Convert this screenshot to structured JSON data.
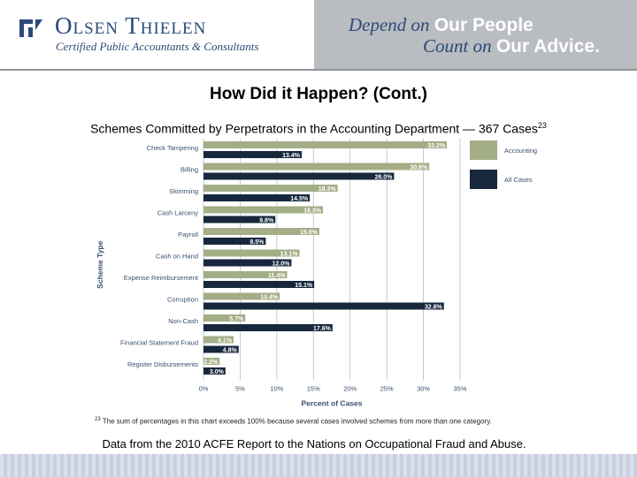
{
  "header": {
    "company_name": "Olsen Thielen",
    "company_sub": "Certified Public Accountants & Consultants",
    "tagline1_pre": "Depend on ",
    "tagline1_em": "Our People",
    "tagline2_pre": "Count on ",
    "tagline2_em": "Our Advice."
  },
  "slide": {
    "title": "How Did it Happen? (Cont.)",
    "chart_title": "Schemes Committed by Perpetrators in the Accounting Department — 367 Cases",
    "chart_title_note": "23",
    "footnote_mark": "23",
    "footnote": "The sum of percentages in this chart exceeds 100% because several cases involved schemes from more than one category.",
    "source": "Data from the 2010 ACFE Report to the Nations on Occupational Fraud and Abuse."
  },
  "colors": {
    "accounting": "#a3ad86",
    "all_cases": "#17283d",
    "grid": "#b5bdc8"
  },
  "chart_data": {
    "type": "bar",
    "orientation": "horizontal",
    "xlabel": "Percent of Cases",
    "ylabel": "Scheme Type",
    "xlim": [
      0,
      35
    ],
    "xticks": [
      "0%",
      "5%",
      "10%",
      "15%",
      "20%",
      "25%",
      "30%",
      "35%"
    ],
    "legend_position": "right",
    "grid": true,
    "categories": [
      "Check Tampering",
      "Billing",
      "Skimming",
      "Cash Larceny",
      "Payroll",
      "Cash on Hand",
      "Expense Reimbursement",
      "Corruption",
      "Non-Cash",
      "Financial Statement Fraud",
      "Register Disbursements"
    ],
    "series": [
      {
        "name": "Accounting",
        "values": [
          33.2,
          30.8,
          18.3,
          16.3,
          15.8,
          13.1,
          11.4,
          10.4,
          5.7,
          4.1,
          2.2
        ],
        "labels": [
          "33.2%",
          "30.8%",
          "18.3%",
          "16.3%",
          "15.8%",
          "13.1%",
          "11.4%",
          "10.4%",
          "5.7%",
          "4.1%",
          "2.2%"
        ]
      },
      {
        "name": "All Cases",
        "values": [
          13.4,
          26.0,
          14.5,
          9.8,
          8.5,
          12.0,
          15.1,
          32.8,
          17.6,
          4.8,
          3.0
        ],
        "labels": [
          "13.4%",
          "26.0%",
          "14.5%",
          "9.8%",
          "8.5%",
          "12.0%",
          "15.1%",
          "32.8%",
          "17.6%",
          "4.8%",
          "3.0%"
        ]
      }
    ]
  }
}
